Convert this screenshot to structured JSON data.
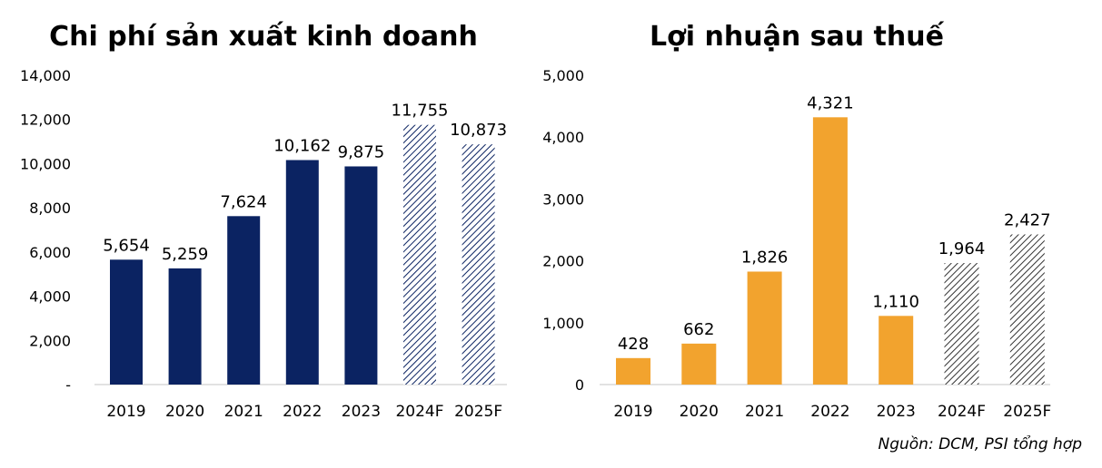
{
  "chart_data": [
    {
      "type": "bar",
      "title": "Chi phí sản xuất kinh doanh",
      "categories": [
        "2019",
        "2020",
        "2021",
        "2022",
        "2023",
        "2024F",
        "2025F"
      ],
      "values": [
        5654,
        5259,
        7624,
        10162,
        9875,
        11755,
        10873
      ],
      "value_labels": [
        "5,654",
        "5,259",
        "7,624",
        "10,162",
        "9,875",
        "11,755",
        "10,873"
      ],
      "forecast": [
        false,
        false,
        false,
        false,
        false,
        true,
        true
      ],
      "yticks": [
        "-",
        "2,000",
        "4,000",
        "6,000",
        "8,000",
        "10,000",
        "12,000",
        "14,000"
      ],
      "ylim": [
        0,
        14000
      ],
      "xlabel": "",
      "ylabel": "",
      "grid": false,
      "color": "#0b2362"
    },
    {
      "type": "bar",
      "title": "Lợi nhuận sau thuế",
      "categories": [
        "2019",
        "2020",
        "2021",
        "2022",
        "2023",
        "2024F",
        "2025F"
      ],
      "values": [
        428,
        662,
        1826,
        4321,
        1110,
        1964,
        2427
      ],
      "value_labels": [
        "428",
        "662",
        "1,826",
        "4,321",
        "1,110",
        "1,964",
        "2,427"
      ],
      "forecast": [
        false,
        false,
        false,
        false,
        false,
        true,
        true
      ],
      "yticks": [
        "0",
        "1,000",
        "2,000",
        "3,000",
        "4,000",
        "5,000"
      ],
      "ylim": [
        0,
        5000
      ],
      "xlabel": "",
      "ylabel": "",
      "grid": false,
      "color": "#f2a32e"
    }
  ],
  "source": "Nguồn: DCM, PSI tổng hợp"
}
